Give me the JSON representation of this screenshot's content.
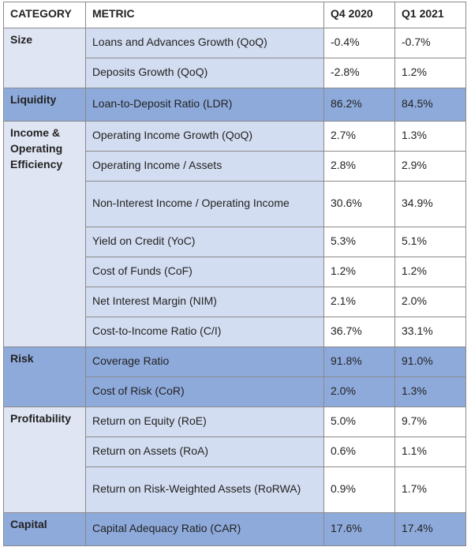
{
  "table": {
    "header": [
      "CATEGORY",
      "METRIC",
      "Q4 2020",
      "Q1 2021"
    ],
    "groups": [
      {
        "category": "Size",
        "color": "#dfe5f3",
        "rows": [
          [
            "Loans and Advances Growth (QoQ)",
            "-0.4%",
            "-0.7%"
          ],
          [
            "Deposits Growth (QoQ)",
            "-2.8%",
            "1.2%"
          ]
        ]
      },
      {
        "category": "Liquidity",
        "color": "#8eaadb",
        "rows": [
          [
            "Loan-to-Deposit Ratio (LDR)",
            "86.2%",
            "84.5%"
          ]
        ]
      },
      {
        "category": "Income & Operating Efficiency",
        "color": "#dfe5f3",
        "rows": [
          [
            "Operating Income Growth (QoQ)",
            "2.7%",
            "1.3%"
          ],
          [
            "Operating Income / Assets",
            "2.8%",
            "2.9%"
          ],
          [
            "Non-Interest Income / Operating Income",
            "30.6%",
            "34.9%"
          ],
          [
            "Yield on Credit (YoC)",
            "5.3%",
            "5.1%"
          ],
          [
            "Cost of Funds (CoF)",
            "1.2%",
            "1.2%"
          ],
          [
            "Net Interest Margin (NIM)",
            "2.1%",
            "2.0%"
          ],
          [
            "Cost-to-Income Ratio (C/I)",
            "36.7%",
            "33.1%"
          ]
        ]
      },
      {
        "category": "Risk",
        "color": "#8eaadb",
        "rows": [
          [
            "Coverage Ratio",
            "91.8%",
            "91.0%"
          ],
          [
            "Cost of Risk (CoR)",
            "2.0%",
            "1.3%"
          ]
        ]
      },
      {
        "category": "Profitability",
        "color": "#dfe5f3",
        "rows": [
          [
            "Return on Equity (RoE)",
            "5.0%",
            "9.7%"
          ],
          [
            "Return on Assets (RoA)",
            "0.6%",
            "1.1%"
          ],
          [
            "Return on Risk-Weighted Assets (RoRWA)",
            "0.9%",
            "1.7%"
          ]
        ]
      },
      {
        "category": "Capital",
        "color": "#8eaadb",
        "rows": [
          [
            "Capital Adequacy Ratio (CAR)",
            "17.6%",
            "17.4%"
          ]
        ]
      }
    ]
  }
}
